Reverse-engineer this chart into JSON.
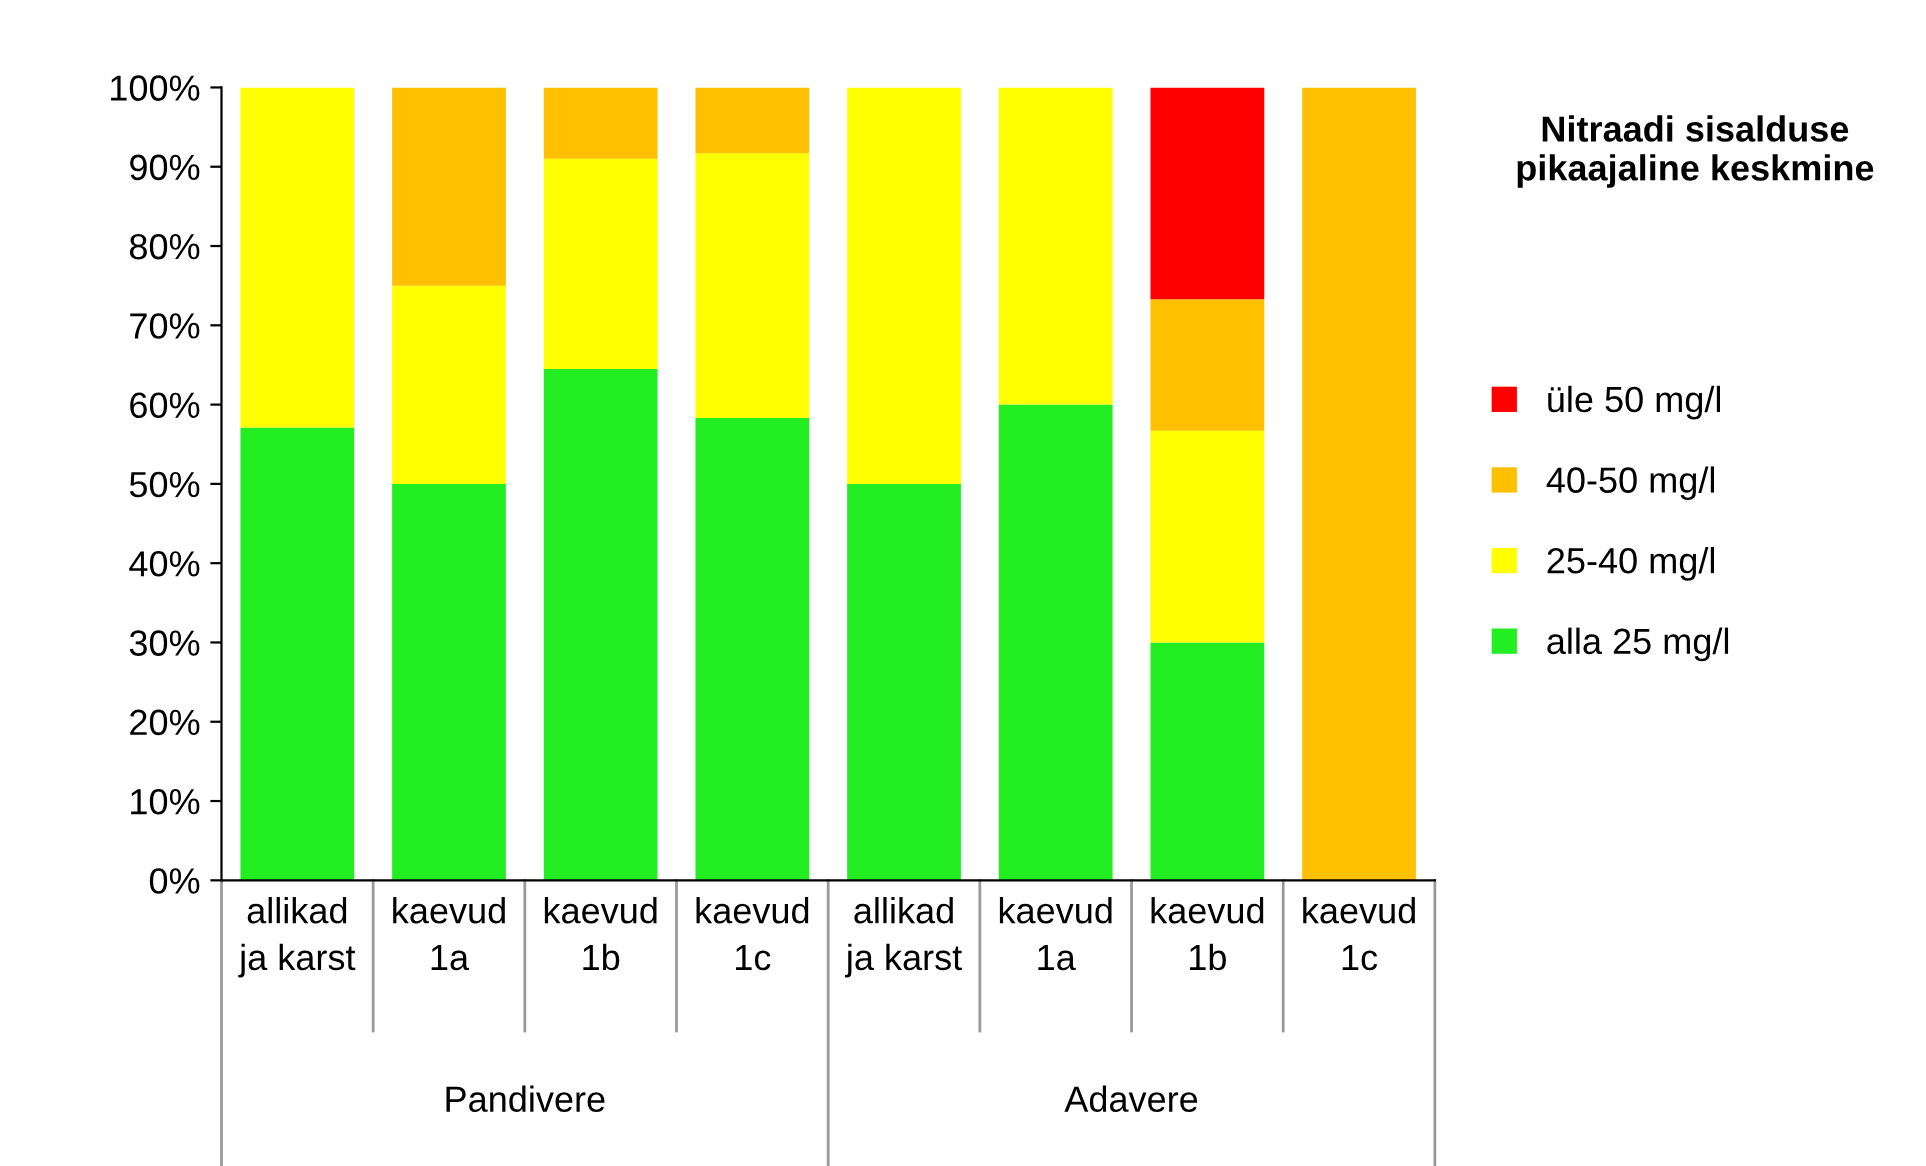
{
  "chart_data": {
    "type": "bar",
    "stacked": true,
    "title": "Nitraadi sisalduse pikaajaline keskmine",
    "categories": [
      "allikad\nja karst",
      "kaevud\n1a",
      "kaevud\n1b",
      "kaevud\n1c",
      "allikad\nja karst",
      "kaevud\n1a",
      "kaevud\n1b",
      "kaevud\n1c"
    ],
    "series": [
      {
        "name": "alla 25 mg/l",
        "color": "#22ee22",
        "values": [
          57.1,
          50,
          64.5,
          58.3,
          50,
          60,
          30,
          0
        ]
      },
      {
        "name": "25-40 mg/l",
        "color": "#ffff00",
        "values": [
          42.9,
          25,
          26.5,
          33.4,
          50,
          40,
          26.7,
          0
        ]
      },
      {
        "name": "40-50 mg/l",
        "color": "#ffc000",
        "values": [
          0,
          25,
          9,
          8.3,
          0,
          0,
          16.6,
          100
        ]
      },
      {
        "name": "üle 50 mg/l",
        "color": "#ff0000",
        "values": [
          0,
          0,
          0,
          0,
          0,
          0,
          26.7,
          0
        ]
      }
    ],
    "ylim": [
      0,
      100
    ],
    "yticks": [
      {
        "value": 0,
        "label": "0%"
      },
      {
        "value": 10,
        "label": "10%"
      },
      {
        "value": 20,
        "label": "20%"
      },
      {
        "value": 30,
        "label": "30%"
      },
      {
        "value": 40,
        "label": "40%"
      },
      {
        "value": 50,
        "label": "50%"
      },
      {
        "value": 60,
        "label": "60%"
      },
      {
        "value": 70,
        "label": "70%"
      },
      {
        "value": 80,
        "label": "80%"
      },
      {
        "value": 90,
        "label": "90%"
      },
      {
        "value": 100,
        "label": "100%"
      }
    ],
    "annotations": [
      "Pandivere",
      "Adavere"
    ],
    "legend": "right"
  }
}
